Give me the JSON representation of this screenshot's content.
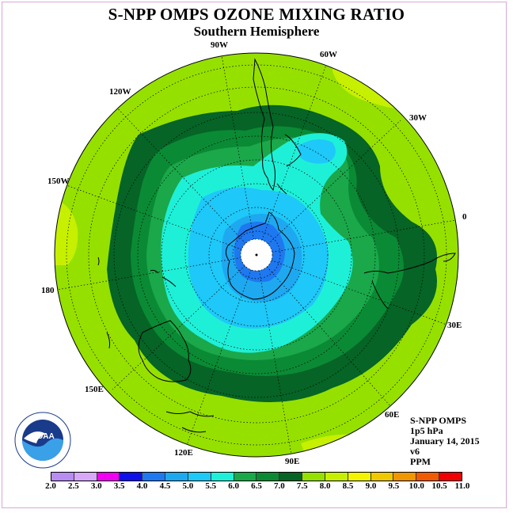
{
  "header": {
    "title": "S-NPP OMPS OZONE MIXING RATIO",
    "subtitle": "Southern Hemisphere"
  },
  "longitude_labels": {
    "w90": "90W",
    "w60": "60W",
    "w30": "30W",
    "w120": "120W",
    "w150": "150W",
    "zero": "0",
    "e180": "180",
    "e30": "30E",
    "e150": "150E",
    "e60": "60E",
    "e120": "120E",
    "e90": "90E"
  },
  "info": {
    "instrument": "S-NPP OMPS",
    "level": "1p5 hPa",
    "date": "January 14, 2015",
    "version": "v6",
    "units": "PPM"
  },
  "colorbar": {
    "ticks": [
      "2.0",
      "2.5",
      "3.0",
      "3.5",
      "4.0",
      "4.5",
      "5.0",
      "5.5",
      "6.0",
      "6.5",
      "7.0",
      "7.5",
      "8.0",
      "8.5",
      "9.0",
      "9.5",
      "10.0",
      "10.5",
      "11.0"
    ],
    "colors": [
      "#b88cf0",
      "#d8a8f8",
      "#f000f0",
      "#1010e8",
      "#1e78f0",
      "#1ea8f0",
      "#1ec8f8",
      "#1ef0d8",
      "#1aa84a",
      "#0a8a34",
      "#056426",
      "#96e000",
      "#c6f000",
      "#f4f400",
      "#f0c800",
      "#f09600",
      "#f05a00",
      "#f00000",
      "#8a5a2a"
    ]
  },
  "map_colors": {
    "background_ppm_7_5": "#96e000",
    "ppm_8_0": "#c6f000",
    "ppm_7_0": "#056426",
    "ppm_6_5": "#0a8a34",
    "ppm_6_0": "#1aa84a",
    "ppm_5_5": "#1ef0d8",
    "ppm_5_0": "#1ec8f8",
    "ppm_4_5": "#1ea8f0",
    "ppm_4_0": "#1e78f0"
  },
  "logo": {
    "text": "NOAA"
  }
}
